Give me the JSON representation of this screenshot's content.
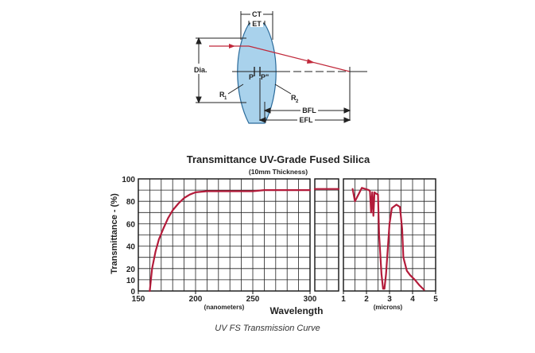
{
  "diagram": {
    "labels": {
      "ct": "CT",
      "et": "ET",
      "dia": "Dia.",
      "p": "P",
      "p_prime": "P\"",
      "r1": "R",
      "r1_sub": "1",
      "r2": "R",
      "r2_sub": "2",
      "bfl": "BFL",
      "efl": "EFL"
    },
    "colors": {
      "lens_fill": "#a9d2ec",
      "lens_stroke": "#2a6a9a",
      "ray": "#c0283a",
      "line": "#222222"
    }
  },
  "chart_data": {
    "type": "line",
    "title": "Transmittance UV-Grade Fused Silica",
    "subtitle": "(10mm Thickness)",
    "ylabel": "Transmittance - (%)",
    "xlabel": "Wavelength",
    "ylim": [
      0,
      100
    ],
    "yticks": [
      "0",
      "10",
      "20",
      "40",
      "60",
      "80",
      "100"
    ],
    "grid": true,
    "line_color": "#b31b3a",
    "panels": [
      {
        "name": "uv",
        "unit_label": "(nanometers)",
        "xlim": [
          150,
          300
        ],
        "xticks": [
          150,
          200,
          250,
          300
        ],
        "x": [
          160,
          162,
          165,
          168,
          172,
          176,
          180,
          185,
          190,
          195,
          200,
          210,
          220,
          250,
          260,
          275,
          290,
          300
        ],
        "y": [
          0,
          20,
          35,
          46,
          56,
          65,
          72,
          78,
          83,
          86,
          88,
          89,
          89,
          89,
          90,
          90,
          90,
          90
        ]
      },
      {
        "name": "visible",
        "unit_label": "",
        "xlim": [
          0,
          1
        ],
        "xticks": [],
        "x": [
          0,
          1
        ],
        "y": [
          91,
          91
        ]
      },
      {
        "name": "ir",
        "unit_label": "(microns)",
        "xlim": [
          1,
          5
        ],
        "xticks": [
          1,
          2,
          3,
          4,
          5
        ],
        "x": [
          1.4,
          1.5,
          1.8,
          2.1,
          2.15,
          2.2,
          2.25,
          2.3,
          2.35,
          2.4,
          2.5,
          2.55,
          2.65,
          2.72,
          2.78,
          2.85,
          3.0,
          3.1,
          3.3,
          3.45,
          3.55,
          3.6,
          3.75,
          3.9,
          4.1,
          4.3,
          4.5
        ],
        "y": [
          91,
          80,
          92,
          90,
          89,
          70,
          88,
          67,
          88,
          87,
          86,
          50,
          15,
          2,
          2,
          15,
          60,
          74,
          77,
          75,
          55,
          30,
          18,
          14,
          10,
          5,
          1
        ]
      }
    ]
  },
  "caption": "UV FS Transmission Curve"
}
